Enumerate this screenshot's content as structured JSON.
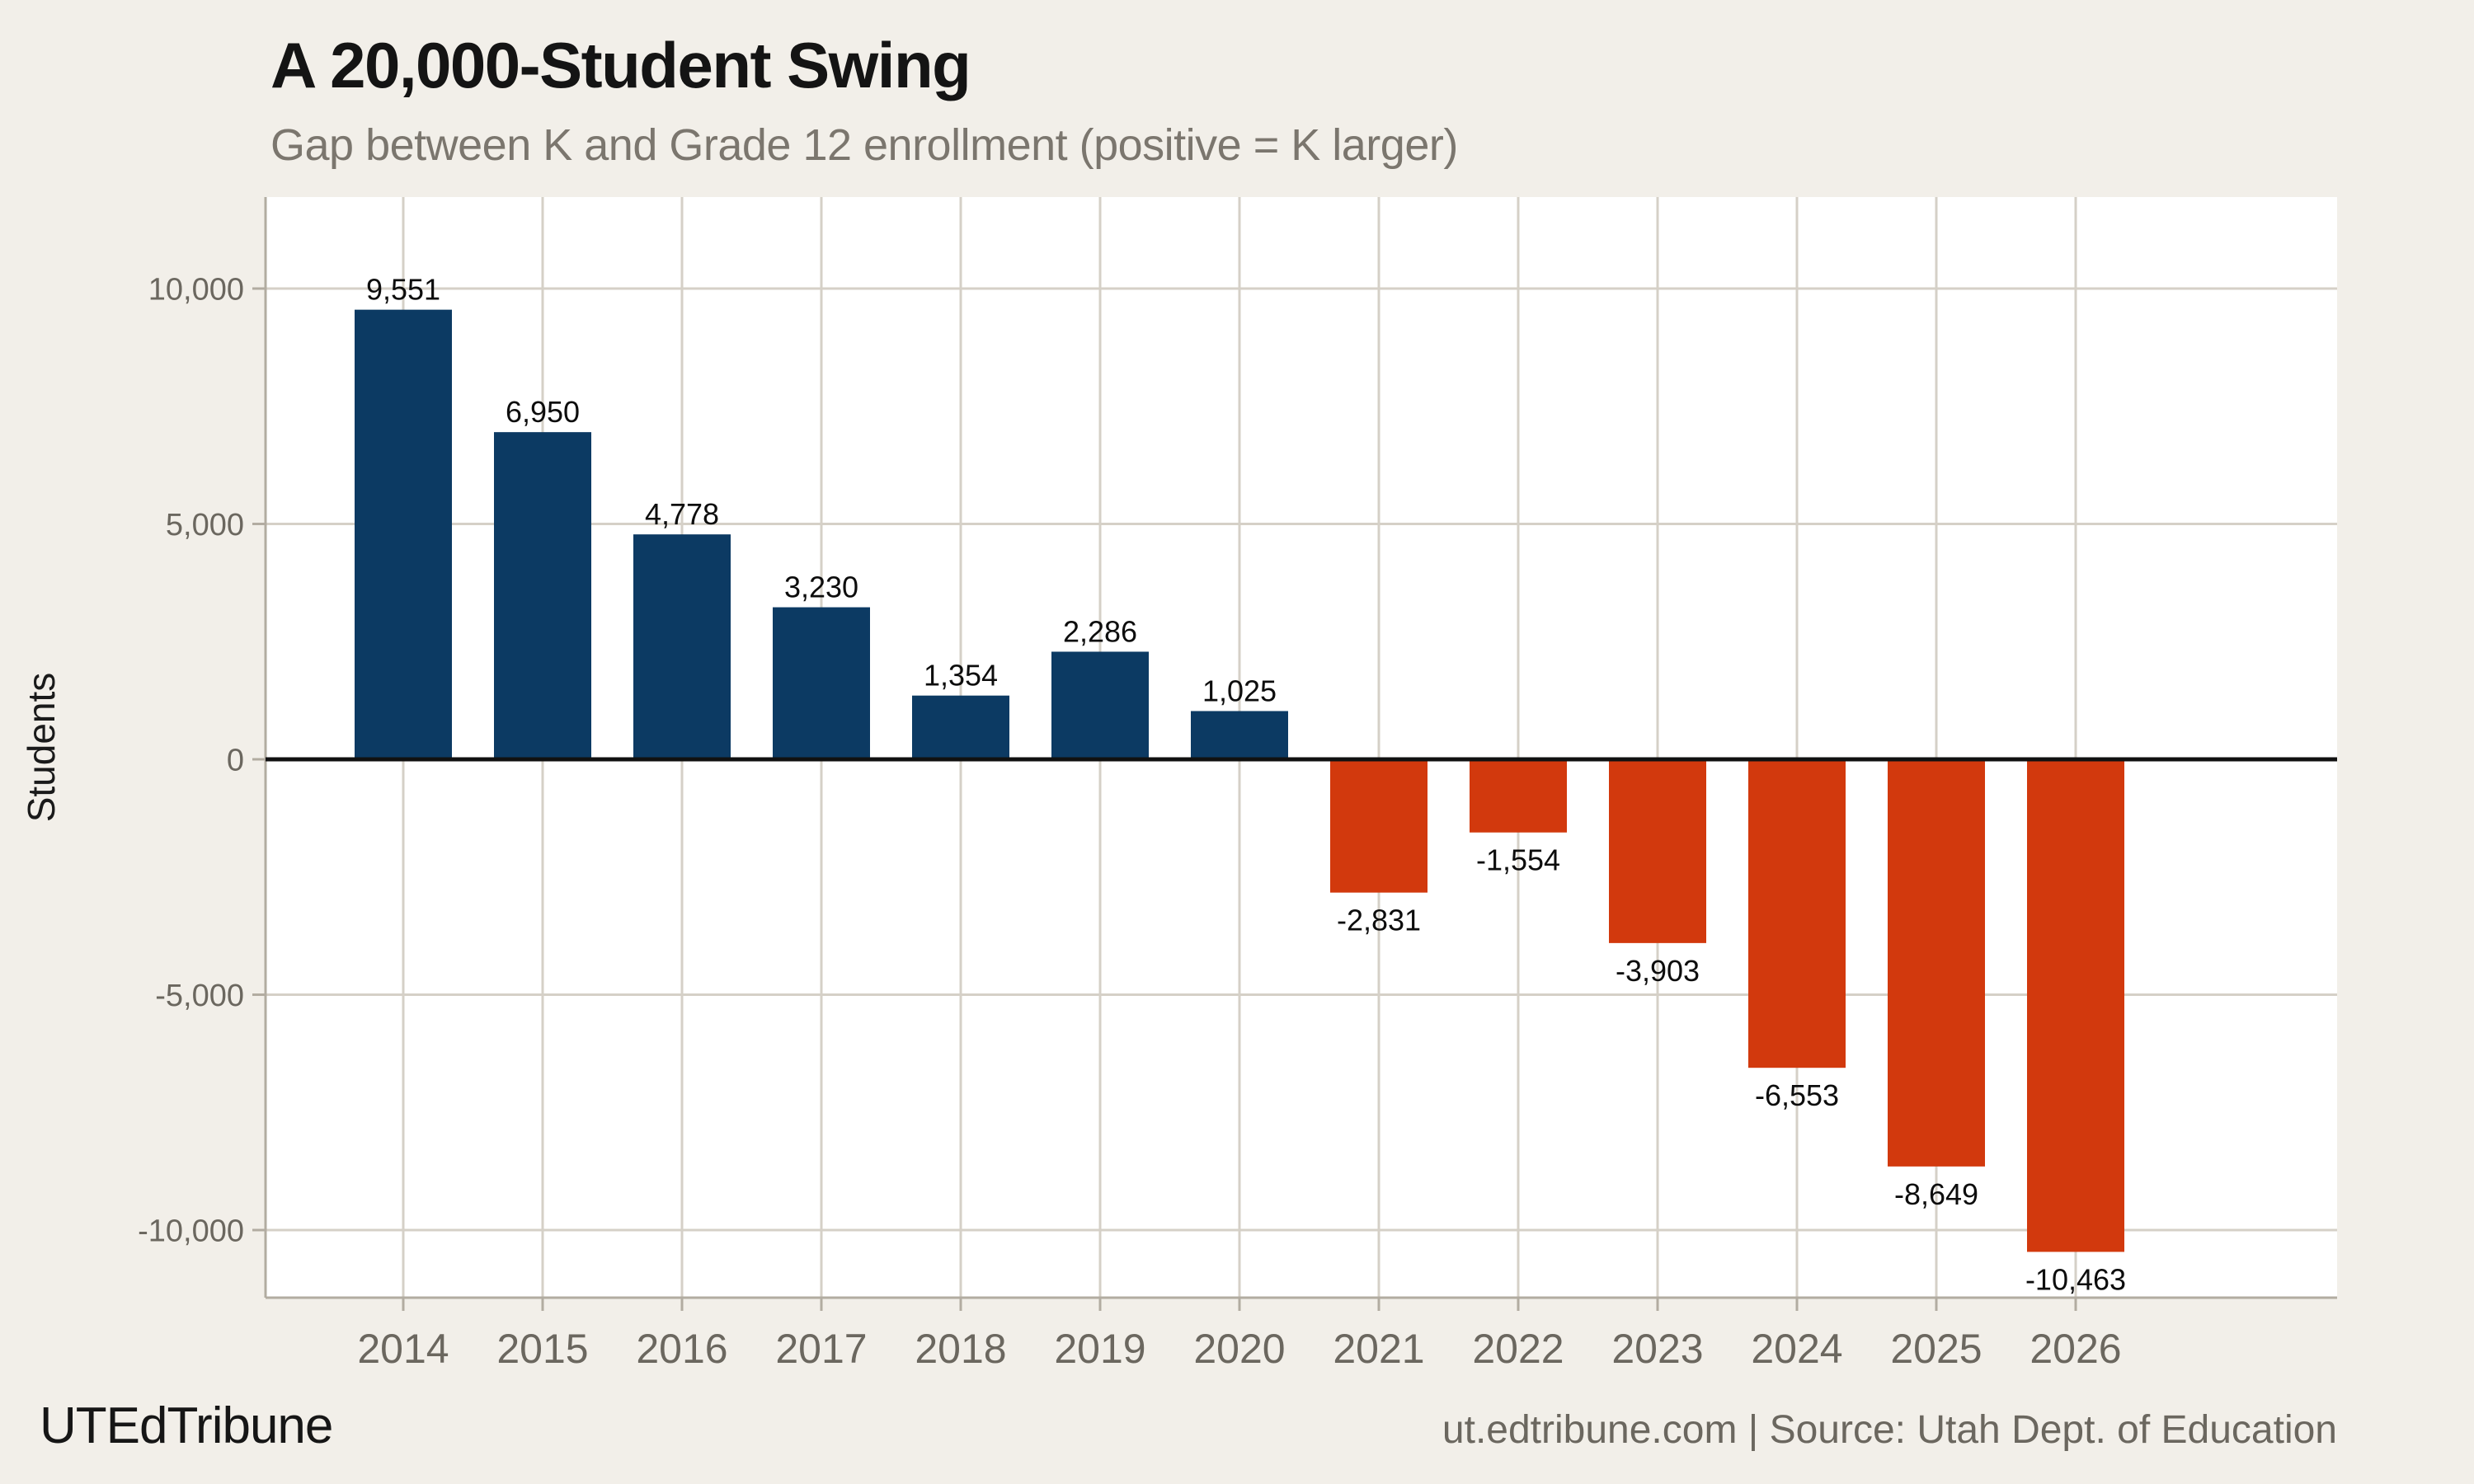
{
  "header": {
    "title": "A 20,000-Student Swing",
    "subtitle": "Gap between K and Grade 12 enrollment (positive = K larger)"
  },
  "footer": {
    "brand": "UTEdTribune",
    "source": "ut.edtribune.com | Source: Utah Dept. of Education"
  },
  "colors": {
    "page_background": "#f2efe9",
    "panel_background": "#ffffff",
    "gridline": "#d5d0c7",
    "axis_line": "#b2aca1",
    "zero_line": "#111111",
    "tick_text": "#6b675f",
    "positive_bar": "#0c3a63",
    "negative_bar": "#d2390d"
  },
  "chart_data": {
    "type": "bar",
    "title": "A 20,000-Student Swing",
    "subtitle": "Gap between K and Grade 12 enrollment (positive = K larger)",
    "xlabel": "",
    "ylabel": "Students",
    "categories": [
      "2014",
      "2015",
      "2016",
      "2017",
      "2018",
      "2019",
      "2020",
      "2021",
      "2022",
      "2023",
      "2024",
      "2025",
      "2026"
    ],
    "values": [
      9551,
      6950,
      4778,
      3230,
      1354,
      2286,
      1025,
      -2831,
      -1554,
      -3903,
      -6553,
      -8649,
      -10463
    ],
    "data_labels": [
      "9,551",
      "6,950",
      "4,778",
      "3,230",
      "1,354",
      "2,286",
      "1,025",
      "-2,831",
      "-1,554",
      "-3,903",
      "-6,553",
      "-8,649",
      "-10,463"
    ],
    "y_ticks": [
      {
        "value": 10000,
        "label": "10,000"
      },
      {
        "value": 5000,
        "label": "5,000"
      },
      {
        "value": 0,
        "label": "0"
      },
      {
        "value": -5000,
        "label": "-5,000"
      },
      {
        "value": -10000,
        "label": "-10,000"
      }
    ],
    "ylim": [
      -11436,
      11944
    ],
    "grid": true,
    "legend": "none",
    "zero_line": true,
    "positive_color": "#0c3a63",
    "negative_color": "#d2390d"
  }
}
